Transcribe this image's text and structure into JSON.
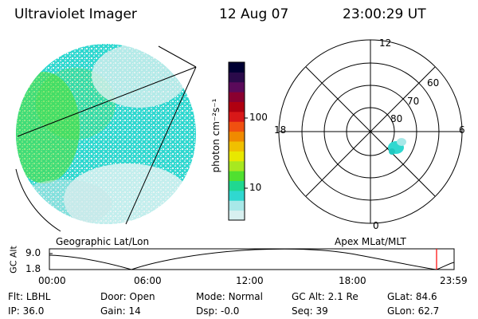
{
  "header": {
    "instrument": "Ultraviolet Imager",
    "date": "12 Aug 07",
    "time": "23:00:29  UT"
  },
  "colorbar": {
    "unit_label": "photon cm⁻²s⁻¹",
    "ticks": [
      "100",
      "10"
    ],
    "colors": [
      "#000033",
      "#2a0a4a",
      "#5a0a5a",
      "#8a0030",
      "#b00010",
      "#d81818",
      "#f05010",
      "#f08a00",
      "#f0c000",
      "#e8e800",
      "#a8e820",
      "#50e030",
      "#20d890",
      "#30d8d0",
      "#a8e8e8",
      "#d8f0f0"
    ]
  },
  "globe_map": {
    "label": "Geographic Lat/Lon",
    "land_color": "#30d8d0",
    "bright_color": "#50e030",
    "faint_color": "#c8e8e8"
  },
  "polar_plot": {
    "label": "Apex  MLat/MLT",
    "mlt_labels": [
      "12",
      "18",
      "6",
      "0"
    ],
    "lat_labels": [
      "60",
      "70",
      "80"
    ],
    "emission_color": "#30d8d0"
  },
  "altitude_plot": {
    "ylabel": "GC Alt",
    "y_ticks": [
      "9.0",
      "1.8"
    ],
    "x_ticks": [
      "00:00",
      "06:00",
      "12:00",
      "18:00",
      "23:59"
    ],
    "current_time_marker_color": "#ff0000"
  },
  "status": {
    "row1": [
      {
        "label": "Flt:",
        "value": "LBHL"
      },
      {
        "label": "Door:",
        "value": "Open"
      },
      {
        "label": "Mode:",
        "value": "Normal"
      },
      {
        "label": "GC Alt:",
        "value": "2.1 Re"
      },
      {
        "label": "GLat:",
        "value": "84.6"
      }
    ],
    "row2": [
      {
        "label": "IP:",
        "value": "36.0"
      },
      {
        "label": "Gain:",
        "value": "14"
      },
      {
        "label": "Dsp:",
        "value": "-0.0"
      },
      {
        "label": "Seq:",
        "value": "39"
      },
      {
        "label": "GLon:",
        "value": "62.7"
      }
    ]
  }
}
